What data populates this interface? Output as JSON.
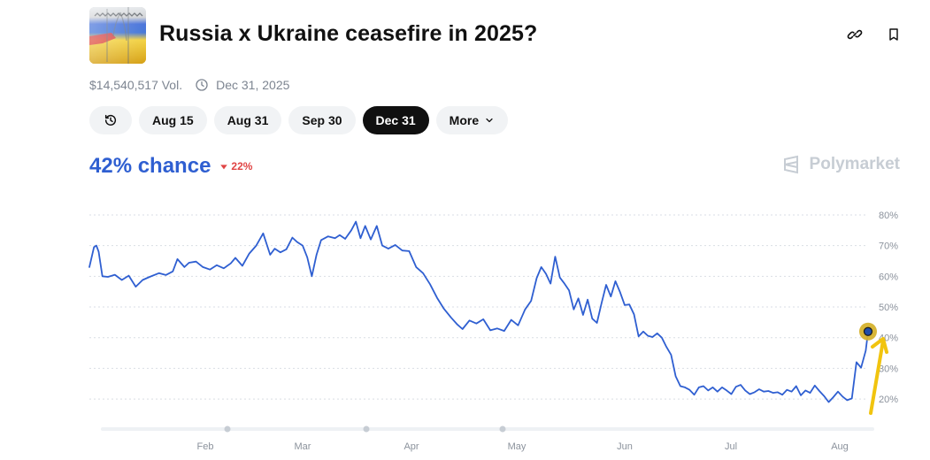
{
  "header": {
    "title": "Russia x Ukraine ceasefire in 2025?",
    "volume": "$14,540,517 Vol.",
    "end_date": "Dec 31, 2025"
  },
  "tabs": [
    {
      "label": "",
      "icon": "history-icon"
    },
    {
      "label": "Aug 15"
    },
    {
      "label": "Aug 31"
    },
    {
      "label": "Sep 30"
    },
    {
      "label": "Dec 31",
      "active": true
    },
    {
      "label": "More",
      "icon": "chevron-down-icon"
    }
  ],
  "summary": {
    "chance": "42% chance",
    "delta": "22%",
    "delta_color": "#e04444",
    "chance_color": "#2f5fd1"
  },
  "brand": {
    "name": "Polymarket"
  },
  "chart_data": {
    "type": "line",
    "x_tick_labels": [
      "Feb",
      "Mar",
      "Apr",
      "May",
      "Jun",
      "Jul",
      "Aug"
    ],
    "y_tick_labels": [
      "80%",
      "70%",
      "60%",
      "50%",
      "40%",
      "30%",
      "20%"
    ],
    "ylim": [
      18,
      82
    ],
    "grid": true,
    "series": [
      {
        "color": "#2f5fd1",
        "points": [
          [
            2025.0,
            63.0
          ],
          [
            2025.01,
            69.5
          ],
          [
            2025.015,
            70.0
          ],
          [
            2025.02,
            68.0
          ],
          [
            2025.028,
            60.0
          ],
          [
            2025.04,
            59.8
          ],
          [
            2025.055,
            60.5
          ],
          [
            2025.07,
            58.8
          ],
          [
            2025.085,
            60.2
          ],
          [
            2025.1,
            56.6
          ],
          [
            2025.115,
            58.8
          ],
          [
            2025.13,
            59.8
          ],
          [
            2025.15,
            61.0
          ],
          [
            2025.165,
            60.4
          ],
          [
            2025.18,
            61.6
          ],
          [
            2025.19,
            65.6
          ],
          [
            2025.205,
            63.0
          ],
          [
            2025.215,
            64.4
          ],
          [
            2025.23,
            64.8
          ],
          [
            2025.245,
            63.0
          ],
          [
            2025.26,
            62.2
          ],
          [
            2025.275,
            63.6
          ],
          [
            2025.29,
            62.6
          ],
          [
            2025.305,
            64.2
          ],
          [
            2025.315,
            66.0
          ],
          [
            2025.33,
            63.4
          ],
          [
            2025.345,
            67.4
          ],
          [
            2025.36,
            70.0
          ],
          [
            2025.375,
            74.0
          ],
          [
            2025.39,
            67.0
          ],
          [
            2025.4,
            69.0
          ],
          [
            2025.412,
            67.8
          ],
          [
            2025.425,
            68.8
          ],
          [
            2025.438,
            72.6
          ],
          [
            2025.448,
            71.2
          ],
          [
            2025.46,
            70.0
          ],
          [
            2025.47,
            66.2
          ],
          [
            2025.48,
            60.0
          ],
          [
            2025.49,
            67.0
          ],
          [
            2025.5,
            71.8
          ],
          [
            2025.515,
            73.0
          ],
          [
            2025.53,
            72.4
          ],
          [
            2025.54,
            73.4
          ],
          [
            2025.552,
            72.2
          ],
          [
            2025.565,
            75.0
          ],
          [
            2025.575,
            77.8
          ],
          [
            2025.585,
            72.4
          ],
          [
            2025.595,
            76.4
          ],
          [
            2025.607,
            72.0
          ],
          [
            2025.62,
            76.4
          ],
          [
            2025.632,
            70.0
          ],
          [
            2025.645,
            69.0
          ],
          [
            2025.66,
            70.2
          ],
          [
            2025.675,
            68.4
          ],
          [
            2025.69,
            68.2
          ],
          [
            2025.705,
            63.0
          ],
          [
            2025.72,
            61.0
          ],
          [
            2025.735,
            57.4
          ],
          [
            2025.75,
            53.0
          ],
          [
            2025.765,
            49.4
          ],
          [
            2025.78,
            46.6
          ],
          [
            2025.793,
            44.4
          ],
          [
            2025.805,
            42.8
          ],
          [
            2025.82,
            45.6
          ],
          [
            2025.835,
            44.6
          ],
          [
            2025.85,
            46.0
          ],
          [
            2025.865,
            42.4
          ],
          [
            2025.88,
            43.0
          ],
          [
            2025.895,
            42.2
          ],
          [
            2025.91,
            45.8
          ],
          [
            2025.925,
            44.0
          ],
          [
            2025.94,
            49.2
          ],
          [
            2025.953,
            52.0
          ],
          [
            2025.965,
            59.4
          ],
          [
            2025.975,
            63.0
          ],
          [
            2025.985,
            60.8
          ],
          [
            2025.995,
            57.6
          ],
          [
            2026.005,
            66.4
          ],
          [
            2026.015,
            59.6
          ],
          [
            2026.025,
            57.6
          ],
          [
            2026.035,
            55.4
          ],
          [
            2026.045,
            49.2
          ],
          [
            2026.055,
            52.8
          ],
          [
            2026.065,
            47.4
          ],
          [
            2026.075,
            52.4
          ],
          [
            2026.085,
            46.2
          ],
          [
            2026.095,
            44.8
          ],
          [
            2026.105,
            51.2
          ],
          [
            2026.115,
            57.2
          ],
          [
            2026.125,
            53.4
          ],
          [
            2026.135,
            58.4
          ],
          [
            2026.145,
            54.8
          ],
          [
            2026.155,
            50.6
          ],
          [
            2026.165,
            50.8
          ],
          [
            2026.175,
            47.6
          ],
          [
            2026.185,
            40.4
          ],
          [
            2026.195,
            42.0
          ],
          [
            2026.205,
            40.6
          ],
          [
            2026.215,
            40.2
          ],
          [
            2026.225,
            41.4
          ],
          [
            2026.235,
            40.0
          ],
          [
            2026.245,
            37.0
          ],
          [
            2026.255,
            34.4
          ],
          [
            2026.265,
            27.4
          ],
          [
            2026.275,
            24.2
          ],
          [
            2026.285,
            23.8
          ],
          [
            2026.295,
            23.0
          ],
          [
            2026.305,
            21.4
          ],
          [
            2026.315,
            23.8
          ],
          [
            2026.325,
            24.2
          ],
          [
            2026.335,
            22.8
          ],
          [
            2026.345,
            23.8
          ],
          [
            2026.355,
            22.4
          ],
          [
            2026.365,
            23.8
          ],
          [
            2026.375,
            22.8
          ],
          [
            2026.385,
            21.6
          ],
          [
            2026.395,
            24.0
          ],
          [
            2026.405,
            24.6
          ],
          [
            2026.415,
            22.8
          ],
          [
            2026.425,
            21.6
          ],
          [
            2026.435,
            22.2
          ],
          [
            2026.445,
            23.2
          ],
          [
            2026.455,
            22.4
          ],
          [
            2026.465,
            22.6
          ],
          [
            2026.475,
            22.0
          ],
          [
            2026.485,
            22.2
          ],
          [
            2026.495,
            21.4
          ],
          [
            2026.505,
            23.0
          ],
          [
            2026.515,
            22.4
          ],
          [
            2026.525,
            24.2
          ],
          [
            2026.535,
            21.2
          ],
          [
            2026.545,
            22.8
          ],
          [
            2026.555,
            22.0
          ],
          [
            2026.565,
            24.4
          ],
          [
            2026.575,
            22.6
          ],
          [
            2026.585,
            21.0
          ],
          [
            2026.595,
            19.0
          ],
          [
            2026.605,
            20.6
          ],
          [
            2026.615,
            22.4
          ],
          [
            2026.625,
            20.8
          ],
          [
            2026.635,
            19.6
          ],
          [
            2026.645,
            20.2
          ],
          [
            2026.655,
            32.0
          ],
          [
            2026.665,
            30.2
          ],
          [
            2026.675,
            35.8
          ],
          [
            2026.68,
            42.0
          ]
        ]
      }
    ]
  }
}
